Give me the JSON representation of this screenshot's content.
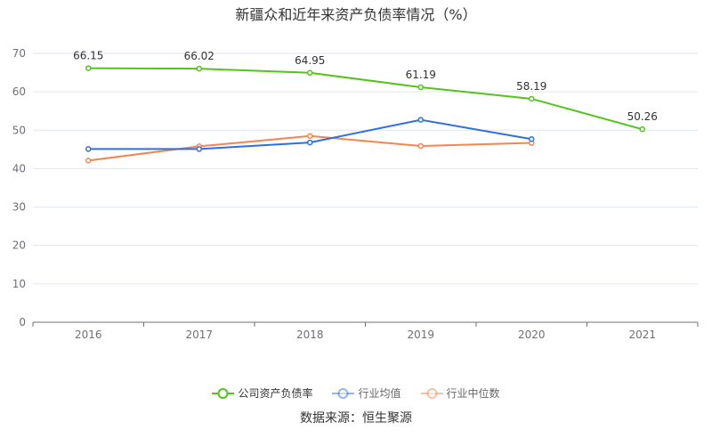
{
  "chart_data": {
    "type": "line",
    "title": "新疆众和近年来资产负债率情况（%）",
    "categories": [
      "2016",
      "2017",
      "2018",
      "2019",
      "2020",
      "2021"
    ],
    "ylim": [
      0,
      70
    ],
    "yticks": [
      0,
      10,
      20,
      30,
      40,
      50,
      60,
      70
    ],
    "grid": true,
    "legend_position": "bottom",
    "series": [
      {
        "name": "公司资产负债率",
        "color": "#52c41a",
        "values": [
          66.15,
          66.02,
          64.95,
          61.19,
          58.19,
          50.26
        ],
        "labels": [
          "66.15",
          "66.02",
          "64.95",
          "61.19",
          "58.19",
          "50.26"
        ]
      },
      {
        "name": "行业均值",
        "color": "#2f6fe0",
        "values": [
          45.1,
          45.1,
          46.8,
          52.7,
          47.7,
          null
        ]
      },
      {
        "name": "行业中位数",
        "color": "#f5844f",
        "values": [
          42.1,
          45.8,
          48.5,
          45.9,
          46.7,
          null
        ]
      }
    ]
  },
  "source": "数据来源：恒生聚源"
}
